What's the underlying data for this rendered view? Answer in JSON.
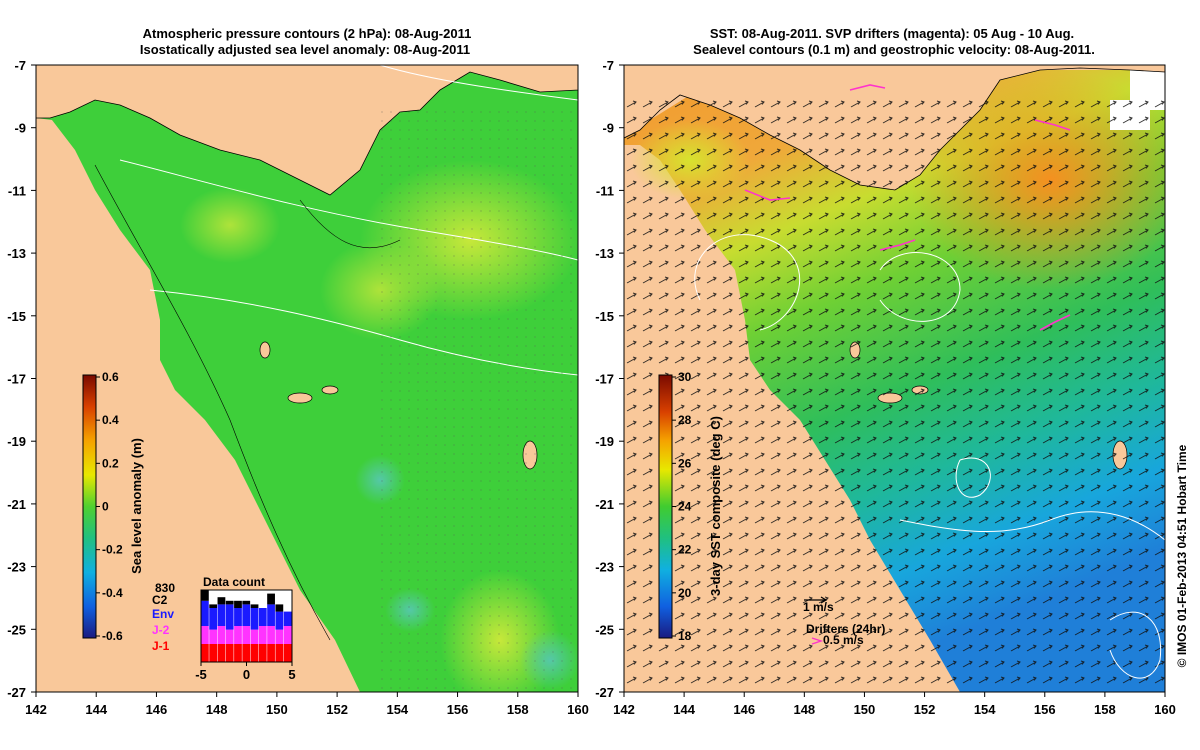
{
  "left_panel": {
    "title_line1": "Atmospheric pressure contours (2 hPa): 08-Aug-2011",
    "title_line2": "Isostatically adjusted sea level anomaly: 08-Aug-2011",
    "x_ticks": [
      "142",
      "144",
      "146",
      "148",
      "150",
      "152",
      "154",
      "156",
      "158",
      "160"
    ],
    "y_ticks": [
      "-7",
      "-9",
      "-11",
      "-13",
      "-15",
      "-17",
      "-19",
      "-21",
      "-23",
      "-25",
      "-27"
    ],
    "colorbar": {
      "title": "Sea level anomaly (m)",
      "ticks": [
        "0.6",
        "0.4",
        "0.2",
        "0",
        "-0.2",
        "-0.4",
        "-0.6"
      ],
      "values": [
        0.6,
        0.4,
        0.2,
        0,
        -0.2,
        -0.4,
        -0.6
      ]
    },
    "data_count": {
      "title": "Data count",
      "satellites": [
        "C2",
        "Env",
        "J-2",
        "J-1"
      ],
      "satellite_colors": [
        "#000000",
        "#1a1aff",
        "#ff33ff",
        "#ff0000"
      ],
      "max_label": "830",
      "x_ticks": [
        "-5",
        "0",
        "5"
      ],
      "days": [
        -5,
        -4,
        -3,
        -2,
        -1,
        0,
        1,
        2,
        3,
        4,
        5
      ],
      "counts": {
        "J-1": [
          0.25,
          0.25,
          0.25,
          0.25,
          0.25,
          0.25,
          0.25,
          0.25,
          0.25,
          0.25,
          0.25
        ],
        "J-2": [
          0.25,
          0.2,
          0.25,
          0.2,
          0.25,
          0.25,
          0.2,
          0.25,
          0.25,
          0.2,
          0.25
        ],
        "Env": [
          0.35,
          0.3,
          0.3,
          0.35,
          0.25,
          0.3,
          0.3,
          0.25,
          0.3,
          0.25,
          0.2
        ],
        "C2": [
          0.15,
          0.05,
          0.1,
          0.05,
          0.1,
          0.05,
          0.05,
          0.0,
          0.15,
          0.1,
          0.0
        ]
      }
    }
  },
  "right_panel": {
    "title_line1": "SST: 08-Aug-2011. SVP drifters (magenta): 05 Aug - 10 Aug.",
    "title_line2": "Sealevel contours (0.1 m) and geostrophic velocity: 08-Aug-2011.",
    "x_ticks": [
      "142",
      "144",
      "146",
      "148",
      "150",
      "152",
      "154",
      "156",
      "158",
      "160"
    ],
    "y_ticks": [
      "-7",
      "-9",
      "-11",
      "-13",
      "-15",
      "-17",
      "-19",
      "-21",
      "-23",
      "-25",
      "-27"
    ],
    "colorbar": {
      "title": "3-day SST composite (deg C)",
      "ticks": [
        "30",
        "28",
        "26",
        "24",
        "22",
        "20",
        "18"
      ],
      "values": [
        30,
        28,
        26,
        24,
        22,
        20,
        18
      ]
    },
    "velocity_scale_label": "1 m/s",
    "drifters_label": "Drifters (24hr)",
    "drifter_scale_label": "0.5 m/s",
    "credit": "© IMOS 01-Feb-2013 04:51 Hobart Time"
  },
  "colors": {
    "land": "#f9c89a",
    "ocean_green": "#3ecf3a",
    "sst_orange": "#f29a2e",
    "sst_blue": "#1aa8e0",
    "drifter": "#ff33cc",
    "white_contour": "#ffffff",
    "axis": "#000000"
  }
}
